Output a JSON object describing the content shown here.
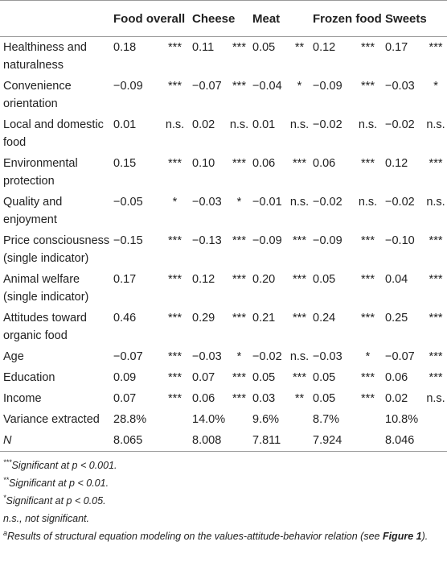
{
  "table": {
    "columns": [
      "Food overall",
      "Cheese",
      "Meat",
      "Frozen food",
      "Sweets"
    ],
    "rows": [
      {
        "label": "Healthiness and naturalness",
        "cells": [
          [
            "0.18",
            "***"
          ],
          [
            "0.11",
            "***"
          ],
          [
            "0.05",
            "**"
          ],
          [
            "0.12",
            "***"
          ],
          [
            "0.17",
            "***"
          ]
        ]
      },
      {
        "label": "Convenience orientation",
        "cells": [
          [
            "−0.09",
            "***"
          ],
          [
            "−0.07",
            "***"
          ],
          [
            "−0.04",
            "*"
          ],
          [
            "−0.09",
            "***"
          ],
          [
            "−0.03",
            "*"
          ]
        ]
      },
      {
        "label": "Local and domestic food",
        "cells": [
          [
            "0.01",
            "n.s."
          ],
          [
            "0.02",
            "n.s."
          ],
          [
            "0.01",
            "n.s."
          ],
          [
            "−0.02",
            "n.s."
          ],
          [
            "−0.02",
            "n.s."
          ]
        ]
      },
      {
        "label": "Environmental protection",
        "cells": [
          [
            "0.15",
            "***"
          ],
          [
            "0.10",
            "***"
          ],
          [
            "0.06",
            "***"
          ],
          [
            "0.06",
            "***"
          ],
          [
            "0.12",
            "***"
          ]
        ]
      },
      {
        "label": "Quality and enjoyment",
        "cells": [
          [
            "−0.05",
            "*"
          ],
          [
            "−0.03",
            "*"
          ],
          [
            "−0.01",
            "n.s."
          ],
          [
            "−0.02",
            "n.s."
          ],
          [
            "−0.02",
            "n.s."
          ]
        ]
      },
      {
        "label": "Price consciousness (single indicator)",
        "cells": [
          [
            "−0.15",
            "***"
          ],
          [
            "−0.13",
            "***"
          ],
          [
            "−0.09",
            "***"
          ],
          [
            "−0.09",
            "***"
          ],
          [
            "−0.10",
            "***"
          ]
        ]
      },
      {
        "label": "Animal welfare (single indicator)",
        "cells": [
          [
            "0.17",
            "***"
          ],
          [
            "0.12",
            "***"
          ],
          [
            "0.20",
            "***"
          ],
          [
            "0.05",
            "***"
          ],
          [
            "0.04",
            "***"
          ]
        ]
      },
      {
        "label": "Attitudes toward organic food",
        "cells": [
          [
            "0.46",
            "***"
          ],
          [
            "0.29",
            "***"
          ],
          [
            "0.21",
            "***"
          ],
          [
            "0.24",
            "***"
          ],
          [
            "0.25",
            "***"
          ]
        ]
      },
      {
        "label": "Age",
        "cells": [
          [
            "−0.07",
            "***"
          ],
          [
            "−0.03",
            "*"
          ],
          [
            "−0.02",
            "n.s."
          ],
          [
            "−0.03",
            "*"
          ],
          [
            "−0.07",
            "***"
          ]
        ]
      },
      {
        "label": "Education",
        "cells": [
          [
            "0.09",
            "***"
          ],
          [
            "0.07",
            "***"
          ],
          [
            "0.05",
            "***"
          ],
          [
            "0.05",
            "***"
          ],
          [
            "0.06",
            "***"
          ]
        ]
      },
      {
        "label": "Income",
        "cells": [
          [
            "0.07",
            "***"
          ],
          [
            "0.06",
            "***"
          ],
          [
            "0.03",
            "**"
          ],
          [
            "0.05",
            "***"
          ],
          [
            "0.02",
            "n.s."
          ]
        ]
      },
      {
        "label": "Variance extracted",
        "cells": [
          "28.8%",
          "14.0%",
          "9.6%",
          "8.7%",
          "10.8%"
        ]
      },
      {
        "label": "N",
        "cells": [
          "8.065",
          "8.008",
          "7.811",
          "7.924",
          "8.046"
        ]
      }
    ]
  },
  "footnotes": [
    {
      "mark": "***",
      "text": "Significant at p < 0.001."
    },
    {
      "mark": "**",
      "text": "Significant at p < 0.01."
    },
    {
      "mark": "*",
      "text": "Significant at p < 0.05."
    },
    {
      "text": "n.s., not significant."
    },
    {
      "mark": "a",
      "text": "Results of structural equation modeling on the values-attitude-behavior relation (see ",
      "bold": "Figure 1",
      "end": ")."
    }
  ]
}
